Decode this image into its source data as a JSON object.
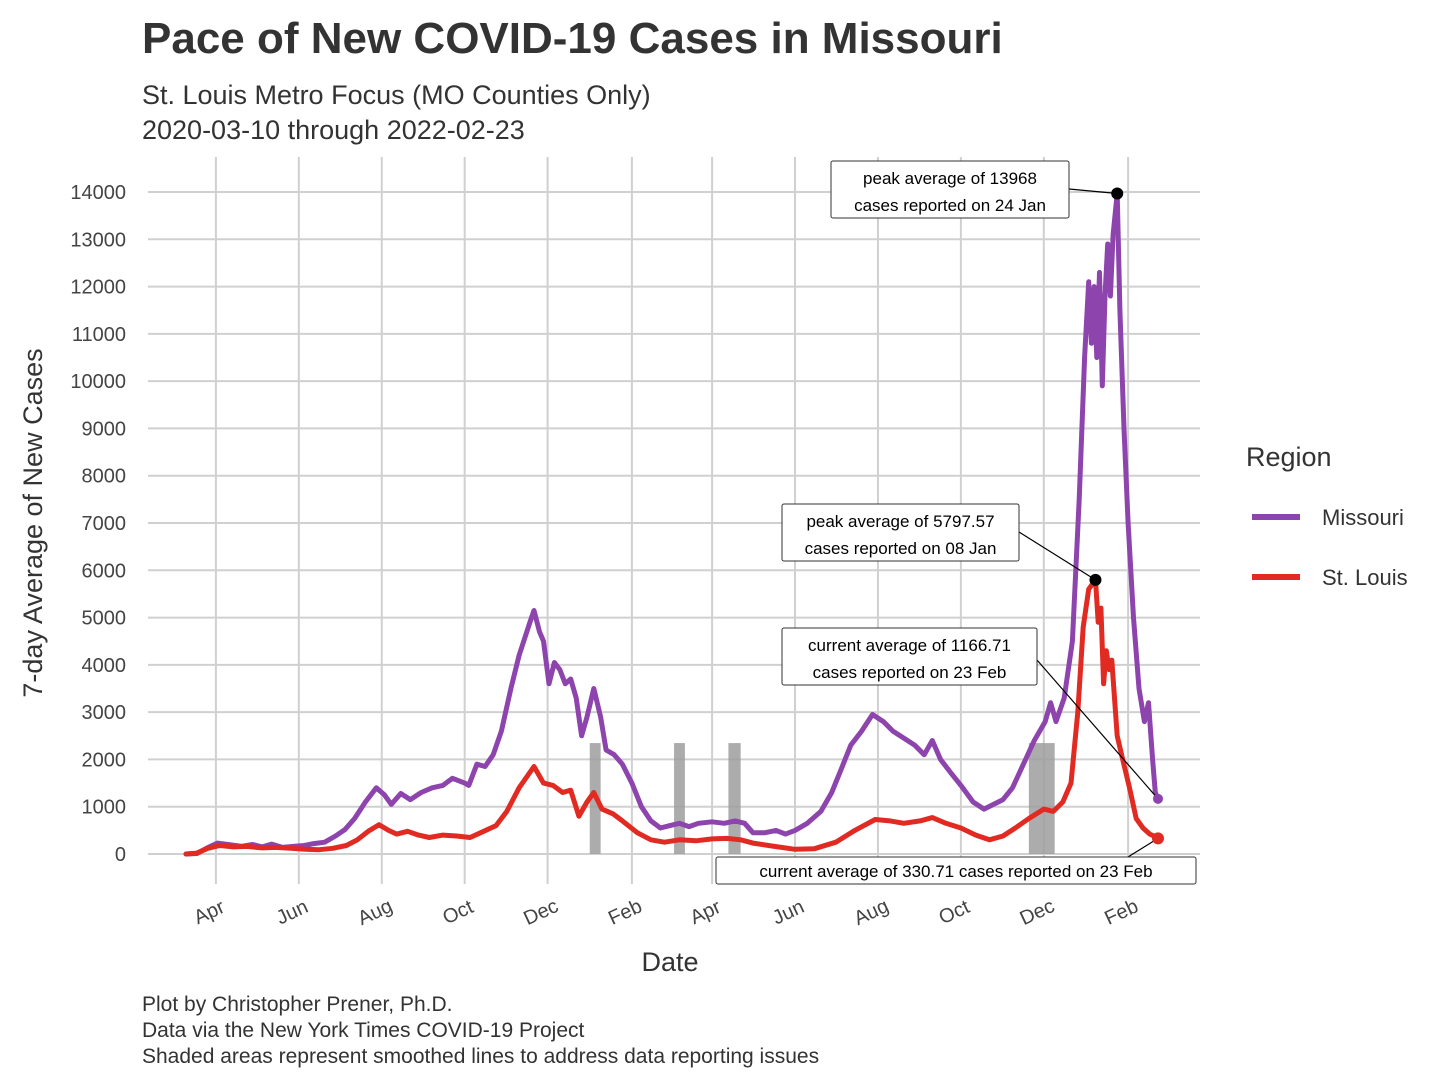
{
  "header": {
    "title": "Pace of New COVID-19 Cases in Missouri",
    "subtitle_line1": "St. Louis Metro Focus (MO Counties Only)",
    "subtitle_line2": "2020-03-10 through 2022-02-23"
  },
  "caption": {
    "line1": "Plot by Christopher Prener, Ph.D.",
    "line2": "Data via the New York Times COVID-19 Project",
    "line3": "Shaded areas represent smoothed lines to address data reporting issues"
  },
  "colors": {
    "missouri": "#8e44ad",
    "st_louis": "#e12a22",
    "shade": "#9e9e9e",
    "grid": "#d0d0d0"
  },
  "chart_data": {
    "type": "line",
    "xlabel": "Date",
    "ylabel": "7-day Average of New Cases",
    "xlim": [
      "2020-03-10",
      "2022-02-23"
    ],
    "ylim": [
      0,
      14000
    ],
    "grid": true,
    "legend_placement": "right",
    "legend_title": "Region",
    "y_ticks": [
      0,
      1000,
      2000,
      3000,
      4000,
      5000,
      6000,
      7000,
      8000,
      9000,
      10000,
      11000,
      12000,
      13000,
      14000
    ],
    "x_ticks": [
      {
        "date": "2020-04-01",
        "label": "Apr"
      },
      {
        "date": "2020-06-01",
        "label": "Jun"
      },
      {
        "date": "2020-08-01",
        "label": "Aug"
      },
      {
        "date": "2020-10-01",
        "label": "Oct"
      },
      {
        "date": "2020-12-01",
        "label": "Dec"
      },
      {
        "date": "2021-02-01",
        "label": "Feb"
      },
      {
        "date": "2021-04-01",
        "label": "Apr"
      },
      {
        "date": "2021-06-01",
        "label": "Jun"
      },
      {
        "date": "2021-08-01",
        "label": "Aug"
      },
      {
        "date": "2021-10-01",
        "label": "Oct"
      },
      {
        "date": "2021-12-01",
        "label": "Dec"
      },
      {
        "date": "2022-02-01",
        "label": "Feb"
      }
    ],
    "shaded_ranges": [
      {
        "start": "2021-01-01",
        "end": "2021-01-09"
      },
      {
        "start": "2021-03-04",
        "end": "2021-03-12"
      },
      {
        "start": "2021-04-13",
        "end": "2021-04-22"
      },
      {
        "start": "2021-11-20",
        "end": "2021-12-09"
      }
    ],
    "series": [
      {
        "name": "Missouri",
        "color": "#8e44ad",
        "points": [
          [
            "2020-03-10",
            0
          ],
          [
            "2020-03-18",
            10
          ],
          [
            "2020-03-25",
            120
          ],
          [
            "2020-04-02",
            230
          ],
          [
            "2020-04-10",
            200
          ],
          [
            "2020-04-20",
            160
          ],
          [
            "2020-04-28",
            200
          ],
          [
            "2020-05-05",
            150
          ],
          [
            "2020-05-12",
            210
          ],
          [
            "2020-05-20",
            140
          ],
          [
            "2020-05-28",
            160
          ],
          [
            "2020-06-05",
            180
          ],
          [
            "2020-06-12",
            220
          ],
          [
            "2020-06-20",
            250
          ],
          [
            "2020-06-28",
            380
          ],
          [
            "2020-07-05",
            520
          ],
          [
            "2020-07-12",
            750
          ],
          [
            "2020-07-20",
            1100
          ],
          [
            "2020-07-28",
            1400
          ],
          [
            "2020-08-03",
            1250
          ],
          [
            "2020-08-08",
            1050
          ],
          [
            "2020-08-15",
            1280
          ],
          [
            "2020-08-22",
            1150
          ],
          [
            "2020-08-30",
            1300
          ],
          [
            "2020-09-07",
            1400
          ],
          [
            "2020-09-15",
            1450
          ],
          [
            "2020-09-22",
            1600
          ],
          [
            "2020-10-01",
            1500
          ],
          [
            "2020-10-04",
            1450
          ],
          [
            "2020-10-10",
            1900
          ],
          [
            "2020-10-16",
            1850
          ],
          [
            "2020-10-22",
            2100
          ],
          [
            "2020-10-28",
            2600
          ],
          [
            "2020-11-04",
            3500
          ],
          [
            "2020-11-10",
            4200
          ],
          [
            "2020-11-18",
            4900
          ],
          [
            "2020-11-21",
            5150
          ],
          [
            "2020-11-25",
            4700
          ],
          [
            "2020-11-28",
            4500
          ],
          [
            "2020-12-02",
            3600
          ],
          [
            "2020-12-06",
            4050
          ],
          [
            "2020-12-10",
            3900
          ],
          [
            "2020-12-14",
            3600
          ],
          [
            "2020-12-18",
            3700
          ],
          [
            "2020-12-22",
            3300
          ],
          [
            "2020-12-26",
            2500
          ],
          [
            "2020-12-30",
            2900
          ],
          [
            "2021-01-04",
            3500
          ],
          [
            "2021-01-09",
            2900
          ],
          [
            "2021-01-13",
            2200
          ],
          [
            "2021-01-19",
            2100
          ],
          [
            "2021-01-25",
            1900
          ],
          [
            "2021-02-01",
            1500
          ],
          [
            "2021-02-08",
            1000
          ],
          [
            "2021-02-15",
            700
          ],
          [
            "2021-02-22",
            550
          ],
          [
            "2021-03-01",
            600
          ],
          [
            "2021-03-08",
            650
          ],
          [
            "2021-03-15",
            580
          ],
          [
            "2021-03-22",
            650
          ],
          [
            "2021-04-01",
            680
          ],
          [
            "2021-04-10",
            650
          ],
          [
            "2021-04-18",
            700
          ],
          [
            "2021-04-25",
            650
          ],
          [
            "2021-05-01",
            450
          ],
          [
            "2021-05-10",
            450
          ],
          [
            "2021-05-18",
            500
          ],
          [
            "2021-05-25",
            420
          ],
          [
            "2021-06-01",
            500
          ],
          [
            "2021-06-10",
            650
          ],
          [
            "2021-06-20",
            900
          ],
          [
            "2021-06-28",
            1300
          ],
          [
            "2021-07-05",
            1800
          ],
          [
            "2021-07-12",
            2300
          ],
          [
            "2021-07-20",
            2600
          ],
          [
            "2021-07-28",
            2950
          ],
          [
            "2021-08-05",
            2800
          ],
          [
            "2021-08-12",
            2600
          ],
          [
            "2021-08-20",
            2450
          ],
          [
            "2021-08-28",
            2300
          ],
          [
            "2021-09-04",
            2100
          ],
          [
            "2021-09-10",
            2400
          ],
          [
            "2021-09-16",
            2000
          ],
          [
            "2021-09-24",
            1700
          ],
          [
            "2021-10-01",
            1450
          ],
          [
            "2021-10-10",
            1100
          ],
          [
            "2021-10-18",
            950
          ],
          [
            "2021-10-25",
            1050
          ],
          [
            "2021-11-01",
            1150
          ],
          [
            "2021-11-08",
            1400
          ],
          [
            "2021-11-16",
            1900
          ],
          [
            "2021-11-24",
            2400
          ],
          [
            "2021-12-02",
            2800
          ],
          [
            "2021-12-06",
            3200
          ],
          [
            "2021-12-10",
            2800
          ],
          [
            "2021-12-16",
            3300
          ],
          [
            "2021-12-22",
            4500
          ],
          [
            "2021-12-27",
            7500
          ],
          [
            "2021-12-31",
            10500
          ],
          [
            "2022-01-03",
            12100
          ],
          [
            "2022-01-05",
            10800
          ],
          [
            "2022-01-07",
            12000
          ],
          [
            "2022-01-09",
            10500
          ],
          [
            "2022-01-11",
            12300
          ],
          [
            "2022-01-13",
            9900
          ],
          [
            "2022-01-15",
            11800
          ],
          [
            "2022-01-17",
            12900
          ],
          [
            "2022-01-19",
            11800
          ],
          [
            "2022-01-21",
            13100
          ],
          [
            "2022-01-24",
            13968
          ],
          [
            "2022-01-26",
            11500
          ],
          [
            "2022-01-29",
            9000
          ],
          [
            "2022-02-01",
            7000
          ],
          [
            "2022-02-05",
            5000
          ],
          [
            "2022-02-09",
            3500
          ],
          [
            "2022-02-13",
            2800
          ],
          [
            "2022-02-16",
            3200
          ],
          [
            "2022-02-19",
            2000
          ],
          [
            "2022-02-21",
            1300
          ],
          [
            "2022-02-23",
            1166.71
          ]
        ]
      },
      {
        "name": "St. Louis",
        "color": "#e12a22",
        "points": [
          [
            "2020-03-10",
            0
          ],
          [
            "2020-03-18",
            20
          ],
          [
            "2020-03-26",
            120
          ],
          [
            "2020-04-04",
            180
          ],
          [
            "2020-04-14",
            150
          ],
          [
            "2020-04-24",
            160
          ],
          [
            "2020-05-05",
            130
          ],
          [
            "2020-05-15",
            140
          ],
          [
            "2020-05-26",
            120
          ],
          [
            "2020-06-06",
            100
          ],
          [
            "2020-06-16",
            90
          ],
          [
            "2020-06-26",
            120
          ],
          [
            "2020-07-06",
            180
          ],
          [
            "2020-07-14",
            300
          ],
          [
            "2020-07-22",
            480
          ],
          [
            "2020-07-30",
            620
          ],
          [
            "2020-08-06",
            500
          ],
          [
            "2020-08-12",
            420
          ],
          [
            "2020-08-20",
            480
          ],
          [
            "2020-08-28",
            400
          ],
          [
            "2020-09-05",
            350
          ],
          [
            "2020-09-15",
            400
          ],
          [
            "2020-09-25",
            380
          ],
          [
            "2020-10-05",
            350
          ],
          [
            "2020-10-15",
            480
          ],
          [
            "2020-10-24",
            600
          ],
          [
            "2020-11-01",
            900
          ],
          [
            "2020-11-10",
            1400
          ],
          [
            "2020-11-21",
            1850
          ],
          [
            "2020-11-28",
            1500
          ],
          [
            "2020-12-05",
            1450
          ],
          [
            "2020-12-12",
            1300
          ],
          [
            "2020-12-18",
            1350
          ],
          [
            "2020-12-24",
            800
          ],
          [
            "2020-12-30",
            1100
          ],
          [
            "2021-01-04",
            1300
          ],
          [
            "2021-01-10",
            950
          ],
          [
            "2021-01-18",
            850
          ],
          [
            "2021-01-25",
            700
          ],
          [
            "2021-02-05",
            450
          ],
          [
            "2021-02-15",
            300
          ],
          [
            "2021-02-25",
            250
          ],
          [
            "2021-03-08",
            300
          ],
          [
            "2021-03-20",
            280
          ],
          [
            "2021-04-01",
            320
          ],
          [
            "2021-04-12",
            330
          ],
          [
            "2021-04-22",
            300
          ],
          [
            "2021-05-01",
            230
          ],
          [
            "2021-05-15",
            170
          ],
          [
            "2021-06-01",
            100
          ],
          [
            "2021-06-15",
            110
          ],
          [
            "2021-07-01",
            250
          ],
          [
            "2021-07-15",
            500
          ],
          [
            "2021-07-30",
            730
          ],
          [
            "2021-08-10",
            700
          ],
          [
            "2021-08-20",
            650
          ],
          [
            "2021-09-01",
            700
          ],
          [
            "2021-09-10",
            770
          ],
          [
            "2021-09-20",
            650
          ],
          [
            "2021-10-01",
            550
          ],
          [
            "2021-10-12",
            400
          ],
          [
            "2021-10-22",
            300
          ],
          [
            "2021-11-01",
            380
          ],
          [
            "2021-11-10",
            550
          ],
          [
            "2021-11-20",
            750
          ],
          [
            "2021-12-01",
            950
          ],
          [
            "2021-12-08",
            900
          ],
          [
            "2021-12-15",
            1100
          ],
          [
            "2021-12-21",
            1500
          ],
          [
            "2021-12-26",
            3000
          ],
          [
            "2021-12-30",
            4800
          ],
          [
            "2022-01-03",
            5600
          ],
          [
            "2022-01-08",
            5797.57
          ],
          [
            "2022-01-10",
            4900
          ],
          [
            "2022-01-12",
            5200
          ],
          [
            "2022-01-14",
            3600
          ],
          [
            "2022-01-16",
            4300
          ],
          [
            "2022-01-18",
            3900
          ],
          [
            "2022-01-20",
            4100
          ],
          [
            "2022-01-24",
            2500
          ],
          [
            "2022-01-28",
            2000
          ],
          [
            "2022-02-02",
            1400
          ],
          [
            "2022-02-07",
            750
          ],
          [
            "2022-02-12",
            550
          ],
          [
            "2022-02-17",
            420
          ],
          [
            "2022-02-20",
            380
          ],
          [
            "2022-02-23",
            330.71
          ]
        ]
      }
    ],
    "annotations": [
      {
        "line1": "peak average of 13968",
        "line2": "cases reported on 24 Jan",
        "date": "2022-01-24",
        "value": 13968
      },
      {
        "line1": "peak average of 5797.57",
        "line2": "cases reported on 08 Jan",
        "date": "2022-01-08",
        "value": 5797.57
      },
      {
        "line1": "current average of 1166.71",
        "line2": "cases reported on 23 Feb",
        "date": "2022-02-23",
        "value": 1166.71
      },
      {
        "line1": "current average of 330.71 cases reported on 23 Feb",
        "line2": "",
        "date": "2022-02-23",
        "value": 330.71
      }
    ]
  }
}
